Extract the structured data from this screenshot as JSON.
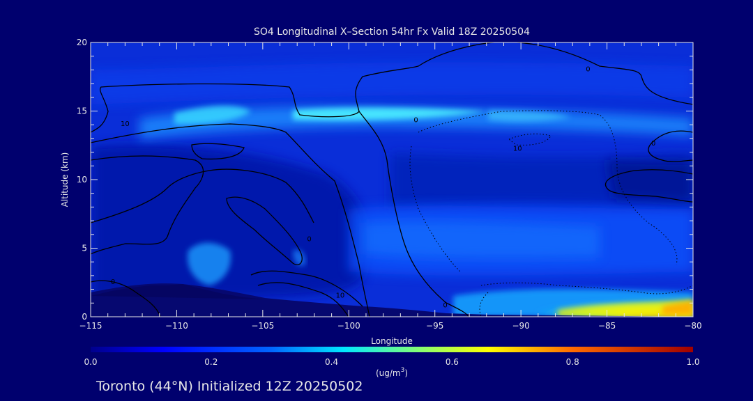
{
  "chart_data": {
    "type": "heatmap",
    "title": "SO4 Longitudinal X–Section 54hr  Fx Valid 18Z 20250504",
    "xlabel": "Longitude",
    "ylabel": "Altitude (km)",
    "xlim": [
      -115,
      -80
    ],
    "ylim": [
      0,
      20
    ],
    "x_ticks": [
      {
        "value": -115,
        "label": "−115"
      },
      {
        "value": -110,
        "label": "−110"
      },
      {
        "value": -105,
        "label": "−105"
      },
      {
        "value": -100,
        "label": "−100"
      },
      {
        "value": -95,
        "label": "−95"
      },
      {
        "value": -90,
        "label": "−90"
      },
      {
        "value": -85,
        "label": "−85"
      },
      {
        "value": -80,
        "label": "−80"
      }
    ],
    "y_ticks": [
      {
        "value": 0,
        "label": "0"
      },
      {
        "value": 5,
        "label": "5"
      },
      {
        "value": 10,
        "label": "10"
      },
      {
        "value": 15,
        "label": "15"
      },
      {
        "value": 20,
        "label": "20"
      }
    ],
    "colorbar": {
      "min": 0.0,
      "max": 1.0,
      "ticks": [
        {
          "value": 0.0,
          "label": "0.0"
        },
        {
          "value": 0.2,
          "label": "0.2"
        },
        {
          "value": 0.4,
          "label": "0.4"
        },
        {
          "value": 0.6,
          "label": "0.6"
        },
        {
          "value": 0.8,
          "label": "0.8"
        },
        {
          "value": 1.0,
          "label": "1.0"
        }
      ],
      "unit_label": "(ug/m",
      "unit_superscript": "3",
      "unit_close": ")"
    },
    "features": [
      {
        "desc": "upper-level band",
        "x": [
          -112,
          -82
        ],
        "y": [
          13.5,
          15.5
        ],
        "value": 0.4
      },
      {
        "desc": "boundary-layer maximum",
        "x": [
          -88,
          -80
        ],
        "y": [
          0,
          1.2
        ],
        "value": 0.65
      },
      {
        "desc": "mid-level region",
        "x": [
          -96,
          -82
        ],
        "y": [
          3,
          9
        ],
        "value": 0.25
      },
      {
        "desc": "western low-level patch",
        "x": [
          -109,
          -104
        ],
        "y": [
          2,
          5
        ],
        "value": 0.3
      }
    ],
    "contour_labels": [
      {
        "text": "10",
        "x": -113.0,
        "y": 14.1
      },
      {
        "text": "0",
        "x": -86.1,
        "y": 18.1
      },
      {
        "text": "0",
        "x": -96.1,
        "y": 14.4
      },
      {
        "text": "10",
        "x": -90.2,
        "y": 12.3
      },
      {
        "text": "0",
        "x": -102.3,
        "y": 5.7
      },
      {
        "text": "0",
        "x": -82.3,
        "y": 12.7
      },
      {
        "text": "0",
        "x": -113.7,
        "y": 2.6
      },
      {
        "text": "10",
        "x": -100.5,
        "y": 1.6
      },
      {
        "text": "0",
        "x": -94.4,
        "y": 0.9
      }
    ]
  },
  "footer": {
    "init_text": "Toronto (44°N) Initialized 12Z 20250502"
  }
}
